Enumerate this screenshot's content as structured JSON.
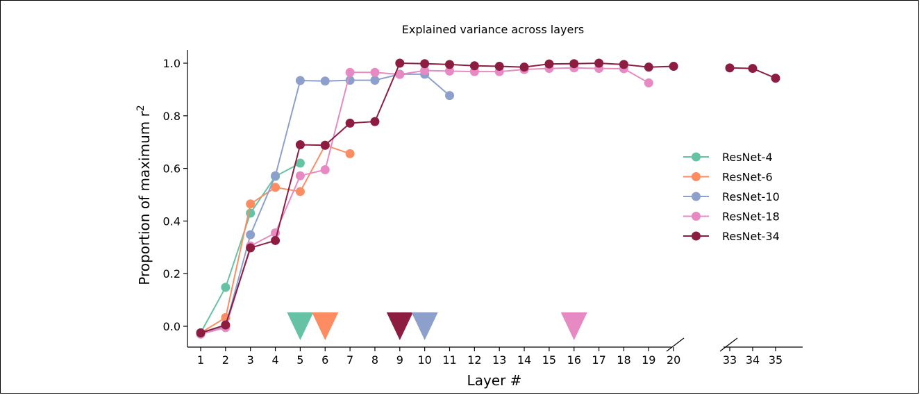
{
  "chart_data": {
    "type": "line",
    "title": "Explained variance across layers",
    "xlabel": "Layer #",
    "ylabel": "Proportion of maximum r",
    "ylabel_superscript": "2",
    "ylim": [
      -0.05,
      1.05
    ],
    "yticks": [
      "0.0",
      "0.2",
      "0.4",
      "0.6",
      "0.8",
      "1.0"
    ],
    "xticks_left": [
      "1",
      "2",
      "3",
      "4",
      "5",
      "6",
      "7",
      "8",
      "9",
      "10",
      "11",
      "12",
      "13",
      "14",
      "15",
      "16",
      "17",
      "18",
      "19",
      "20"
    ],
    "xticks_right": [
      "33",
      "34",
      "35"
    ],
    "axis_break": true,
    "legend_position": "center-right",
    "series": [
      {
        "name": "ResNet-4",
        "color": "#66c2a5",
        "x": [
          1,
          2,
          3,
          4,
          5
        ],
        "y": [
          -0.025,
          0.148,
          0.43,
          0.57,
          0.62
        ]
      },
      {
        "name": "ResNet-6",
        "color": "#fc8d62",
        "x": [
          1,
          2,
          3,
          4,
          5,
          6,
          7
        ],
        "y": [
          -0.025,
          0.033,
          0.465,
          0.528,
          0.512,
          0.688,
          0.656
        ]
      },
      {
        "name": "ResNet-10",
        "color": "#8da0cb",
        "x": [
          1,
          2,
          3,
          4,
          5,
          6,
          7,
          8,
          9,
          10,
          11
        ],
        "y": [
          -0.025,
          0.0,
          0.348,
          0.572,
          0.934,
          0.932,
          0.935,
          0.935,
          0.958,
          0.958,
          0.877
        ]
      },
      {
        "name": "ResNet-18",
        "color": "#e78ac3",
        "x": [
          1,
          2,
          3,
          4,
          5,
          6,
          7,
          8,
          9,
          10,
          11,
          12,
          13,
          14,
          15,
          16,
          17,
          18,
          19
        ],
        "y": [
          -0.03,
          -0.005,
          0.305,
          0.355,
          0.572,
          0.595,
          0.965,
          0.965,
          0.957,
          0.972,
          0.97,
          0.968,
          0.968,
          0.976,
          0.98,
          0.982,
          0.98,
          0.979,
          0.925
        ]
      },
      {
        "name": "ResNet-34",
        "color": "#8c1d40",
        "x": [
          1,
          2,
          3,
          4,
          5,
          6,
          7,
          8,
          9,
          10,
          11,
          12,
          13,
          14,
          15,
          16,
          17,
          18,
          19,
          20,
          33,
          34,
          35
        ],
        "y": [
          -0.025,
          0.005,
          0.298,
          0.326,
          0.69,
          0.688,
          0.772,
          0.778,
          1.0,
          0.998,
          0.995,
          0.99,
          0.988,
          0.985,
          0.997,
          0.998,
          1.0,
          0.995,
          0.985,
          0.988,
          0.982,
          0.98,
          0.943
        ]
      }
    ],
    "markers": [
      {
        "series": "ResNet-4",
        "x": 5
      },
      {
        "series": "ResNet-6",
        "x": 6
      },
      {
        "series": "ResNet-34",
        "x": 9
      },
      {
        "series": "ResNet-10",
        "x": 10
      },
      {
        "series": "ResNet-18",
        "x": 16
      }
    ]
  }
}
